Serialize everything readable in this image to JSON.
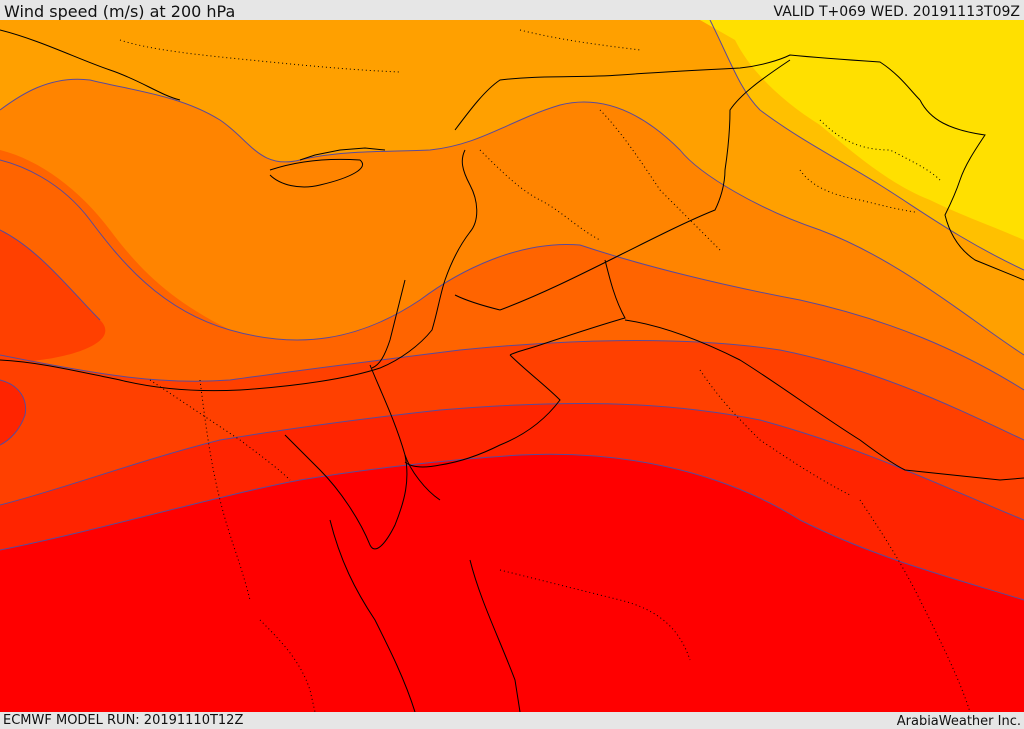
{
  "header": {
    "title": "Wind speed (m/s) at 200 hPa",
    "valid": "VALID T+069 WED. 20191113T09Z"
  },
  "footer": {
    "model_run": "ECMWF MODEL RUN: 20191110T12Z",
    "credit": "ArabiaWeather Inc."
  },
  "map": {
    "colors": {
      "band_1": "#ffe000",
      "band_2": "#ffc000",
      "band_3": "#ffa000",
      "band_4": "#ff8400",
      "band_5": "#ff6400",
      "band_6": "#ff4000",
      "band_7": "#ff2400",
      "band_8": "#ff0000",
      "contour_line": "#5a4a9a",
      "border_line": "#000000"
    }
  }
}
